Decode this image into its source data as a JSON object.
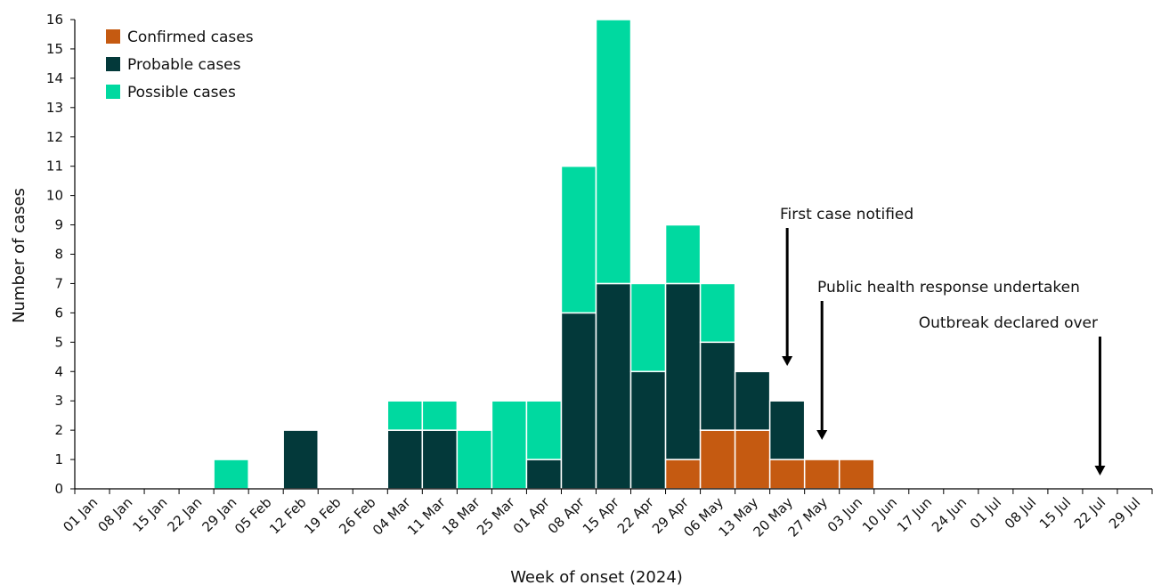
{
  "chart_data": {
    "type": "bar",
    "stacked": true,
    "xlabel": "Week of onset (2024)",
    "ylabel": "Number of cases",
    "ylim": [
      0,
      16
    ],
    "yticks": [
      0,
      1,
      2,
      3,
      4,
      5,
      6,
      7,
      8,
      9,
      10,
      11,
      12,
      13,
      14,
      15,
      16
    ],
    "grid": false,
    "legend_position": "top-left",
    "categories": [
      "01 Jan",
      "08 Jan",
      "15 Jan",
      "22 Jan",
      "29 Jan",
      "05 Feb",
      "12 Feb",
      "19 Feb",
      "26 Feb",
      "04 Mar",
      "11 Mar",
      "18 Mar",
      "25 Mar",
      "01 Apr",
      "08 Apr",
      "15 Apr",
      "22 Apr",
      "29 Apr",
      "06 May",
      "13 May",
      "20 May",
      "27 May",
      "03 Jun",
      "10 Jun",
      "17 Jun",
      "24 Jun",
      "01 Jul",
      "08 Jul",
      "15 Jul",
      "22 Jul",
      "29 Jul"
    ],
    "series": [
      {
        "name": "Confirmed cases",
        "color": "#c55a11",
        "values": [
          0,
          0,
          0,
          0,
          0,
          0,
          0,
          0,
          0,
          0,
          0,
          0,
          0,
          0,
          0,
          0,
          0,
          1,
          2,
          2,
          1,
          1,
          1,
          0,
          0,
          0,
          0,
          0,
          0,
          0,
          0
        ]
      },
      {
        "name": "Probable cases",
        "color": "#03393a",
        "values": [
          0,
          0,
          0,
          0,
          0,
          0,
          2,
          0,
          0,
          2,
          2,
          0,
          0,
          1,
          6,
          7,
          4,
          6,
          3,
          2,
          2,
          0,
          0,
          0,
          0,
          0,
          0,
          0,
          0,
          0,
          0
        ]
      },
      {
        "name": "Possible cases",
        "color": "#00d9a0",
        "values": [
          0,
          0,
          0,
          0,
          1,
          0,
          0,
          0,
          0,
          1,
          1,
          2,
          3,
          2,
          5,
          9,
          3,
          2,
          2,
          0,
          0,
          0,
          0,
          0,
          0,
          0,
          0,
          0,
          0,
          0,
          0
        ]
      }
    ],
    "annotations": [
      {
        "text": "First case notified",
        "week": "20 May"
      },
      {
        "text": "Public health response undertaken",
        "week": "27 May"
      },
      {
        "text": "Outbreak declared over",
        "week": "22 Jul"
      }
    ]
  }
}
